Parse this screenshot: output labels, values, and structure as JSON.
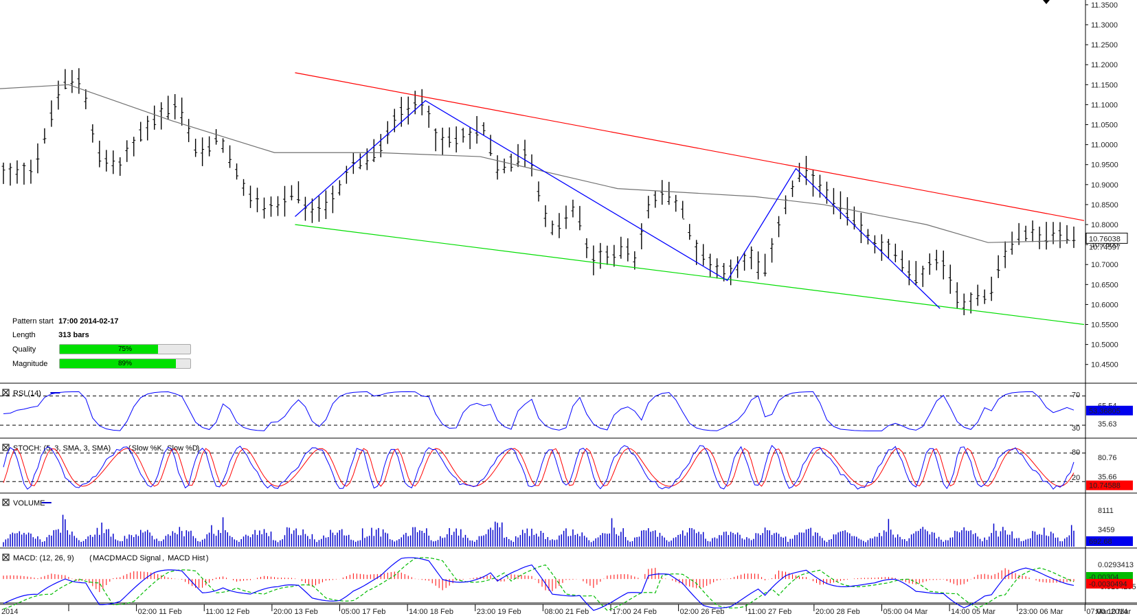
{
  "pattern_info": {
    "start_label": "Pattern start",
    "start_value": "17:00 2014-02-17",
    "length_label": "Length",
    "length_value": "313 bars",
    "quality_label": "Quality",
    "quality_pct": 75,
    "quality_text": "75%",
    "magnitude_label": "Magnitude",
    "magnitude_pct": 89,
    "magnitude_text": "89%"
  },
  "colors": {
    "price": "#000000",
    "ma": "#707070",
    "resistance": "#ff0000",
    "support": "#00dd00",
    "zigzag": "#0000ff",
    "rsi": "#0000ff",
    "stoch_k": "#0000ff",
    "stoch_d": "#ff0000",
    "volume": "#0000cc",
    "macd": "#0000ff",
    "macd_signal": "#00bb00",
    "macd_hist": "#ff0000",
    "current_label_bg": "#0000ee",
    "macd_hist_label_bg": "#ff0000",
    "macd_signal_label_bg": "#00bb00"
  },
  "chart_data": [
    {
      "type": "line",
      "panel": "price",
      "y_ticks": [
        "11.3500",
        "11.3000",
        "11.2500",
        "11.2000",
        "11.1500",
        "11.1000",
        "11.0500",
        "11.0000",
        "10.9500",
        "10.9000",
        "10.8500",
        "10.8000",
        "10.7500",
        "10.7000",
        "10.6500",
        "10.6000",
        "10.5500",
        "10.5000",
        "10.4500"
      ],
      "ylim": [
        10.41,
        11.355
      ],
      "current_value": "10.76038",
      "current_value_2": "10.74597",
      "x_ticks": [
        "2014",
        "02:00 11 Feb",
        "11:00 12 Feb",
        "20:00 13 Feb",
        "05:00 17 Feb",
        "14:00 18 Feb",
        "23:00 19 Feb",
        "08:00 21 Feb",
        "17:00 24 Feb",
        "02:00 26 Feb",
        "11:00 27 Feb",
        "20:00 28 Feb",
        "05:00 04 Mar",
        "14:00 05 Mar",
        "23:00 06 Mar",
        "07:00 10 Mar",
        "Mar 2014"
      ],
      "price_path": [
        [
          0,
          10.93
        ],
        [
          5,
          10.94
        ],
        [
          9,
          11.15
        ],
        [
          12,
          11.17
        ],
        [
          14,
          10.98
        ],
        [
          17,
          10.94
        ],
        [
          22,
          11.06
        ],
        [
          26,
          11.1
        ],
        [
          29,
          10.97
        ],
        [
          32,
          11.02
        ],
        [
          36,
          10.87
        ],
        [
          40,
          10.84
        ],
        [
          43,
          10.88
        ],
        [
          45,
          10.82
        ],
        [
          49,
          10.87
        ],
        [
          51,
          10.94
        ],
        [
          55,
          10.98
        ],
        [
          58,
          11.08
        ],
        [
          62,
          11.11
        ],
        [
          64,
          11.0
        ],
        [
          67,
          11.02
        ],
        [
          71,
          11.04
        ],
        [
          72,
          10.94
        ],
        [
          75,
          10.96
        ],
        [
          77,
          10.99
        ],
        [
          79,
          10.85
        ],
        [
          80,
          10.78
        ],
        [
          84,
          10.84
        ],
        [
          86,
          10.71
        ],
        [
          91,
          10.74
        ],
        [
          93,
          10.7
        ],
        [
          94,
          10.84
        ],
        [
          97,
          10.88
        ],
        [
          99,
          10.85
        ],
        [
          102,
          10.72
        ],
        [
          106,
          10.68
        ],
        [
          110,
          10.73
        ],
        [
          111,
          10.66
        ],
        [
          114,
          10.83
        ],
        [
          117,
          10.94
        ],
        [
          120,
          10.88
        ],
        [
          124,
          10.82
        ],
        [
          127,
          10.76
        ],
        [
          130,
          10.74
        ],
        [
          133,
          10.66
        ],
        [
          137,
          10.72
        ],
        [
          140,
          10.6
        ],
        [
          143,
          10.63
        ],
        [
          144,
          10.61
        ],
        [
          146,
          10.72
        ],
        [
          149,
          10.78
        ],
        [
          152,
          10.77
        ],
        [
          156,
          10.775
        ]
      ],
      "ma_path": [
        [
          0,
          11.14
        ],
        [
          10,
          11.15
        ],
        [
          25,
          11.06
        ],
        [
          40,
          10.98
        ],
        [
          55,
          10.98
        ],
        [
          70,
          10.97
        ],
        [
          90,
          10.89
        ],
        [
          110,
          10.87
        ],
        [
          120,
          10.85
        ],
        [
          135,
          10.8
        ],
        [
          144,
          10.755
        ],
        [
          156,
          10.76
        ]
      ],
      "resistance_line": [
        [
          43,
          11.18
        ],
        [
          158,
          10.81
        ]
      ],
      "support_line": [
        [
          43,
          10.8
        ],
        [
          158,
          10.55
        ]
      ],
      "zigzag": [
        [
          43,
          10.82
        ],
        [
          62,
          11.11
        ],
        [
          106,
          10.66
        ],
        [
          116,
          10.94
        ],
        [
          137,
          10.59
        ]
      ]
    },
    {
      "type": "line",
      "panel": "rsi",
      "title": "RSI (14)",
      "levels": [
        70,
        30
      ],
      "level_labels": [
        "70",
        "30"
      ],
      "scale_labels": [
        "65.54",
        "35.63"
      ],
      "current_value": "53.36805",
      "ylim": [
        15,
        80
      ]
    },
    {
      "type": "line",
      "panel": "stoch",
      "title": "STOCH: (5, 3, SMA, 3, SMA)",
      "legend_k": "Slow %K",
      "legend_d": "Slow %D",
      "levels": [
        80,
        20
      ],
      "level_labels": [
        "80",
        "20"
      ],
      "scale_labels": [
        "80.76",
        "35.66"
      ],
      "current_value": "10.74588",
      "ylim": [
        0,
        100
      ]
    },
    {
      "type": "bar",
      "panel": "volume",
      "title": "VOLUME",
      "scale_labels": [
        "8111",
        "3459"
      ],
      "current_value": "692.68",
      "ylim": [
        0,
        10500
      ]
    },
    {
      "type": "line",
      "panel": "macd",
      "title": "MACD: (12, 26, 9)",
      "legend_macd": "MACD",
      "legend_signal": "MACD Signal",
      "legend_hist": "MACD Hist",
      "scale_labels": [
        "0.0293413",
        "-0.0164295"
      ],
      "current_macd": "-0.00304",
      "current_hist": "-0.0030494",
      "ylim": [
        -0.03,
        0.035
      ]
    }
  ]
}
